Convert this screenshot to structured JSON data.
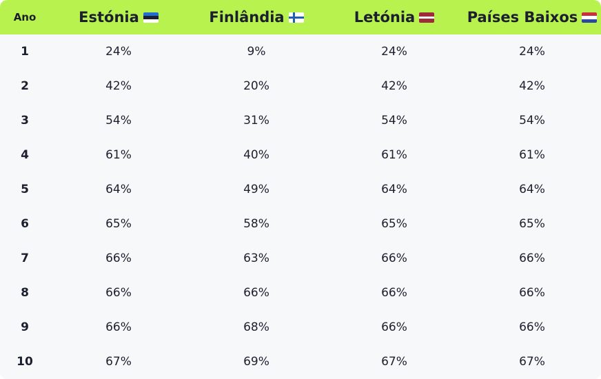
{
  "header": {
    "year_label": "Ano",
    "countries": [
      {
        "name": "Estónia",
        "flag": "flag-estonia-icon"
      },
      {
        "name": "Finlândia",
        "flag": "flag-finland-icon"
      },
      {
        "name": "Letónia",
        "flag": "flag-latvia-icon"
      },
      {
        "name": "Países Baixos",
        "flag": "flag-netherlands-icon"
      }
    ]
  },
  "colors": {
    "header_bg": "#b8f24f",
    "body_bg": "#f7f8fa",
    "text": "#1b1f2e"
  },
  "rows": [
    {
      "year": "1",
      "values": [
        "24%",
        "9%",
        "24%",
        "24%"
      ]
    },
    {
      "year": "2",
      "values": [
        "42%",
        "20%",
        "42%",
        "42%"
      ]
    },
    {
      "year": "3",
      "values": [
        "54%",
        "31%",
        "54%",
        "54%"
      ]
    },
    {
      "year": "4",
      "values": [
        "61%",
        "40%",
        "61%",
        "61%"
      ]
    },
    {
      "year": "5",
      "values": [
        "64%",
        "49%",
        "64%",
        "64%"
      ]
    },
    {
      "year": "6",
      "values": [
        "65%",
        "58%",
        "65%",
        "65%"
      ]
    },
    {
      "year": "7",
      "values": [
        "66%",
        "63%",
        "66%",
        "66%"
      ]
    },
    {
      "year": "8",
      "values": [
        "66%",
        "66%",
        "66%",
        "66%"
      ]
    },
    {
      "year": "9",
      "values": [
        "66%",
        "68%",
        "66%",
        "66%"
      ]
    },
    {
      "year": "10",
      "values": [
        "67%",
        "69%",
        "67%",
        "67%"
      ]
    }
  ]
}
